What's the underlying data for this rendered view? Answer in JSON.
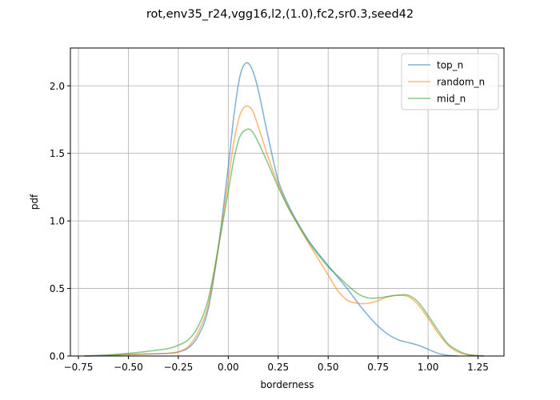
{
  "chart_data": {
    "type": "line",
    "title": "rot,env35_r24,vgg16,l2,(1.0),fc2,sr0.3,seed42",
    "xlabel": "borderness",
    "ylabel": "pdf",
    "xlim": [
      -0.79,
      1.38
    ],
    "ylim": [
      0.0,
      2.28
    ],
    "xticks": [
      -0.75,
      -0.5,
      -0.25,
      0.0,
      0.25,
      0.5,
      0.75,
      1.0,
      1.25
    ],
    "xtick_labels": [
      "−0.75",
      "−0.50",
      "−0.25",
      "0.00",
      "0.25",
      "0.50",
      "0.75",
      "1.00",
      "1.25"
    ],
    "yticks": [
      0.0,
      0.5,
      1.0,
      1.5,
      2.0
    ],
    "ytick_labels": [
      "0.0",
      "0.5",
      "1.0",
      "1.5",
      "2.0"
    ],
    "grid": true,
    "legend_position": "top-right",
    "series": [
      {
        "name": "top_n",
        "color": "#1f77b4",
        "points": [
          [
            -0.72,
            0.0
          ],
          [
            -0.6,
            0.005
          ],
          [
            -0.5,
            0.012
          ],
          [
            -0.4,
            0.015
          ],
          [
            -0.3,
            0.02
          ],
          [
            -0.25,
            0.03
          ],
          [
            -0.2,
            0.06
          ],
          [
            -0.15,
            0.15
          ],
          [
            -0.1,
            0.35
          ],
          [
            -0.05,
            0.8
          ],
          [
            0.0,
            1.4
          ],
          [
            0.03,
            1.8
          ],
          [
            0.06,
            2.08
          ],
          [
            0.09,
            2.17
          ],
          [
            0.12,
            2.12
          ],
          [
            0.15,
            1.97
          ],
          [
            0.2,
            1.62
          ],
          [
            0.25,
            1.3
          ],
          [
            0.3,
            1.12
          ],
          [
            0.35,
            0.98
          ],
          [
            0.4,
            0.86
          ],
          [
            0.45,
            0.76
          ],
          [
            0.5,
            0.67
          ],
          [
            0.55,
            0.58
          ],
          [
            0.6,
            0.49
          ],
          [
            0.65,
            0.39
          ],
          [
            0.7,
            0.3
          ],
          [
            0.75,
            0.22
          ],
          [
            0.8,
            0.16
          ],
          [
            0.85,
            0.12
          ],
          [
            0.9,
            0.1
          ],
          [
            0.95,
            0.08
          ],
          [
            1.0,
            0.05
          ],
          [
            1.05,
            0.02
          ],
          [
            1.1,
            0.005
          ],
          [
            1.15,
            0.0
          ]
        ]
      },
      {
        "name": "random_n",
        "color": "#ff7f0e",
        "points": [
          [
            -0.7,
            0.0
          ],
          [
            -0.6,
            0.005
          ],
          [
            -0.5,
            0.01
          ],
          [
            -0.4,
            0.015
          ],
          [
            -0.3,
            0.02
          ],
          [
            -0.25,
            0.03
          ],
          [
            -0.2,
            0.07
          ],
          [
            -0.15,
            0.18
          ],
          [
            -0.1,
            0.38
          ],
          [
            -0.05,
            0.8
          ],
          [
            0.0,
            1.3
          ],
          [
            0.03,
            1.6
          ],
          [
            0.06,
            1.79
          ],
          [
            0.09,
            1.85
          ],
          [
            0.12,
            1.82
          ],
          [
            0.15,
            1.7
          ],
          [
            0.2,
            1.47
          ],
          [
            0.25,
            1.27
          ],
          [
            0.3,
            1.1
          ],
          [
            0.35,
            0.97
          ],
          [
            0.4,
            0.84
          ],
          [
            0.45,
            0.72
          ],
          [
            0.5,
            0.6
          ],
          [
            0.55,
            0.48
          ],
          [
            0.6,
            0.41
          ],
          [
            0.65,
            0.39
          ],
          [
            0.7,
            0.39
          ],
          [
            0.75,
            0.41
          ],
          [
            0.8,
            0.44
          ],
          [
            0.85,
            0.45
          ],
          [
            0.9,
            0.44
          ],
          [
            0.95,
            0.38
          ],
          [
            1.0,
            0.28
          ],
          [
            1.05,
            0.17
          ],
          [
            1.1,
            0.08
          ],
          [
            1.15,
            0.03
          ],
          [
            1.2,
            0.01
          ],
          [
            1.28,
            0.0
          ]
        ]
      },
      {
        "name": "mid_n",
        "color": "#2ca02c",
        "points": [
          [
            -0.72,
            0.0
          ],
          [
            -0.6,
            0.008
          ],
          [
            -0.5,
            0.02
          ],
          [
            -0.4,
            0.035
          ],
          [
            -0.3,
            0.055
          ],
          [
            -0.25,
            0.08
          ],
          [
            -0.2,
            0.12
          ],
          [
            -0.15,
            0.22
          ],
          [
            -0.1,
            0.42
          ],
          [
            -0.05,
            0.8
          ],
          [
            0.0,
            1.22
          ],
          [
            0.03,
            1.47
          ],
          [
            0.06,
            1.63
          ],
          [
            0.1,
            1.68
          ],
          [
            0.13,
            1.64
          ],
          [
            0.17,
            1.52
          ],
          [
            0.2,
            1.42
          ],
          [
            0.25,
            1.25
          ],
          [
            0.3,
            1.1
          ],
          [
            0.35,
            0.97
          ],
          [
            0.4,
            0.85
          ],
          [
            0.45,
            0.75
          ],
          [
            0.5,
            0.66
          ],
          [
            0.55,
            0.59
          ],
          [
            0.6,
            0.52
          ],
          [
            0.65,
            0.46
          ],
          [
            0.7,
            0.43
          ],
          [
            0.75,
            0.43
          ],
          [
            0.8,
            0.44
          ],
          [
            0.85,
            0.45
          ],
          [
            0.9,
            0.45
          ],
          [
            0.95,
            0.4
          ],
          [
            1.0,
            0.3
          ],
          [
            1.05,
            0.19
          ],
          [
            1.1,
            0.09
          ],
          [
            1.15,
            0.04
          ],
          [
            1.2,
            0.01
          ],
          [
            1.28,
            0.0
          ]
        ]
      }
    ]
  }
}
